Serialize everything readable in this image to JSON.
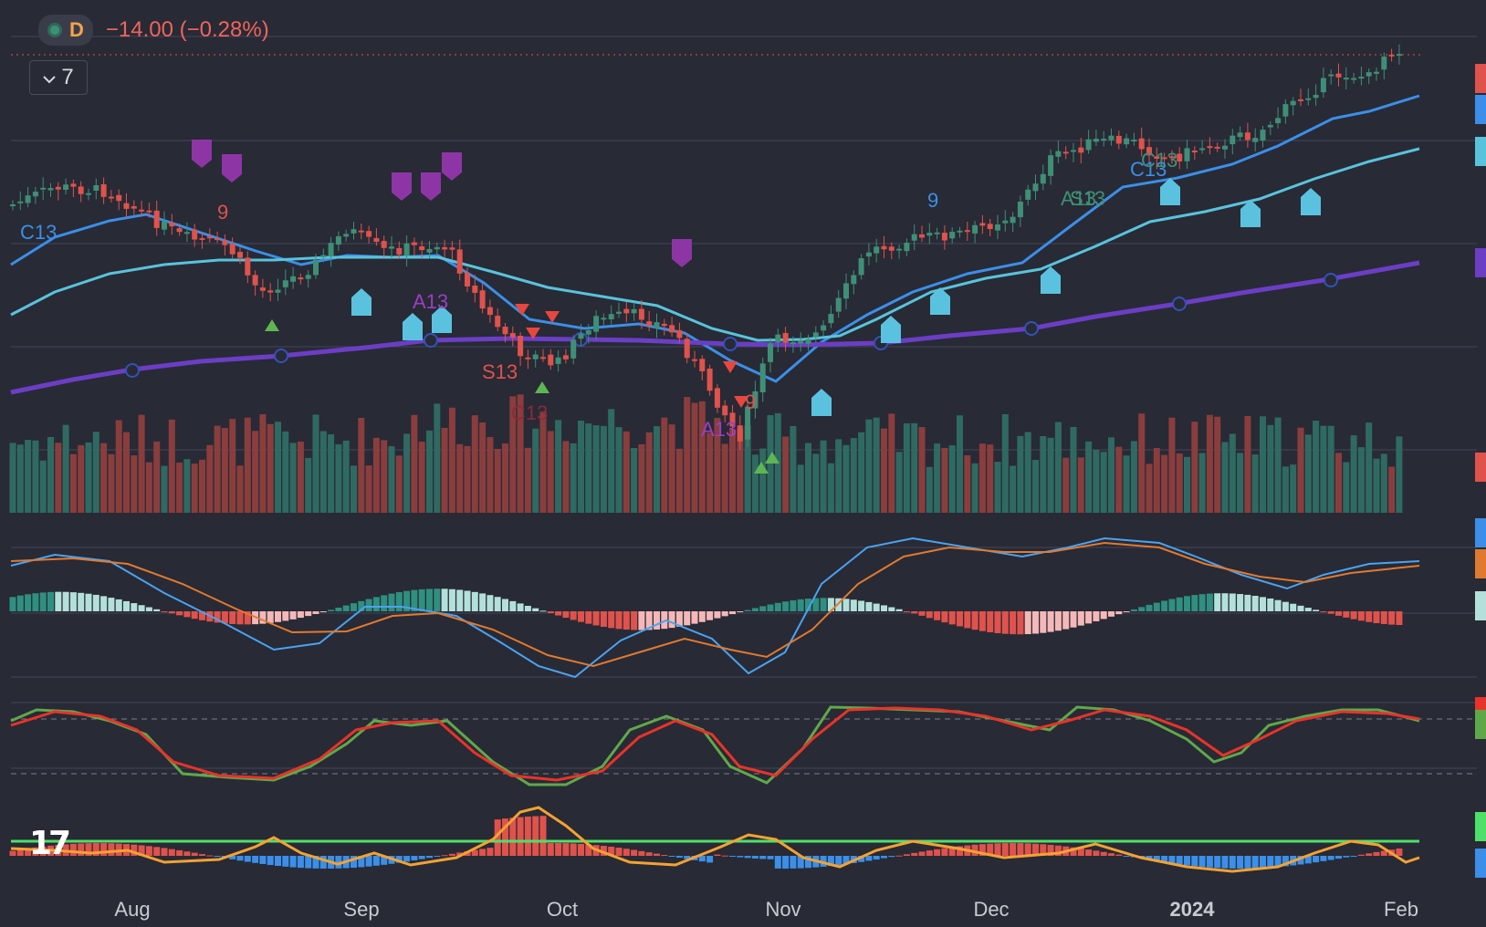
{
  "header": {
    "resolution": "D",
    "change": "−14.00 (−0.28%)",
    "collapse_count": "7",
    "logo": "17"
  },
  "colors": {
    "background": "#282a35",
    "up": "#3f8f77",
    "down": "#e0524c",
    "ema_fast": "#3b8fe8",
    "ema_mid": "#59c3dc",
    "ema_slow": "#6b3ec4",
    "macd": "#4aa3f0",
    "signal": "#e07a30",
    "stoch_k": "#5fa84a",
    "stoch_d": "#e8332a"
  },
  "chart_data": {
    "type": "candlestick",
    "x_ticks": [
      "Aug",
      "Sep",
      "Oct",
      "Nov",
      "Dec",
      "2024",
      "Feb"
    ],
    "markers": {
      "sequential_labels": [
        "C13",
        "9",
        "A13",
        "S13",
        "C13",
        "9",
        "A13",
        "C13",
        "9",
        "A13",
        "C13",
        "S13"
      ],
      "nine": "9",
      "thirteen": "13"
    },
    "panels": [
      "price",
      "volume",
      "macd",
      "stochastic",
      "oscillator"
    ],
    "grid": true,
    "legend": "none"
  }
}
